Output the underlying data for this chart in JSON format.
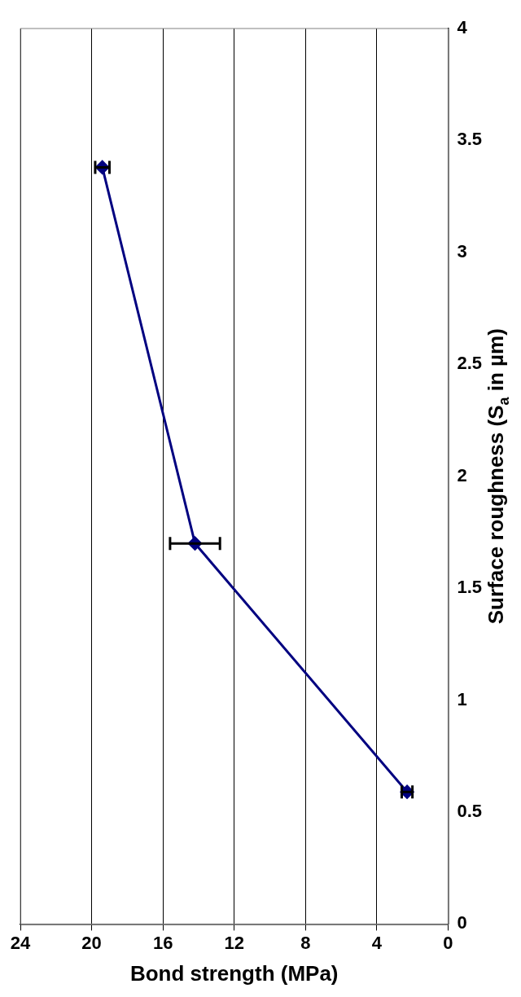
{
  "chart_data": {
    "type": "line",
    "xlabel": "Bond strength (MPa)",
    "ylabel": "Surface roughness (S$_{a}$ in µm)",
    "x": [
      2.3,
      14.2,
      19.4
    ],
    "series": [
      {
        "color": "#000080",
        "values": [
          0.59,
          1.7,
          3.38
        ],
        "xerrors": [
          0.3,
          1.4,
          0.4
        ]
      }
    ],
    "xlim": [
      24,
      0
    ],
    "xticks": [
      24,
      20,
      16,
      12,
      8,
      4,
      0
    ],
    "ylim": [
      0,
      4
    ],
    "yticks": [
      0,
      0.5,
      1,
      1.5,
      2,
      2.5,
      3,
      3.5,
      4
    ],
    "grid": "x",
    "legend": false,
    "marker": "diamond",
    "line_style": "solid"
  }
}
